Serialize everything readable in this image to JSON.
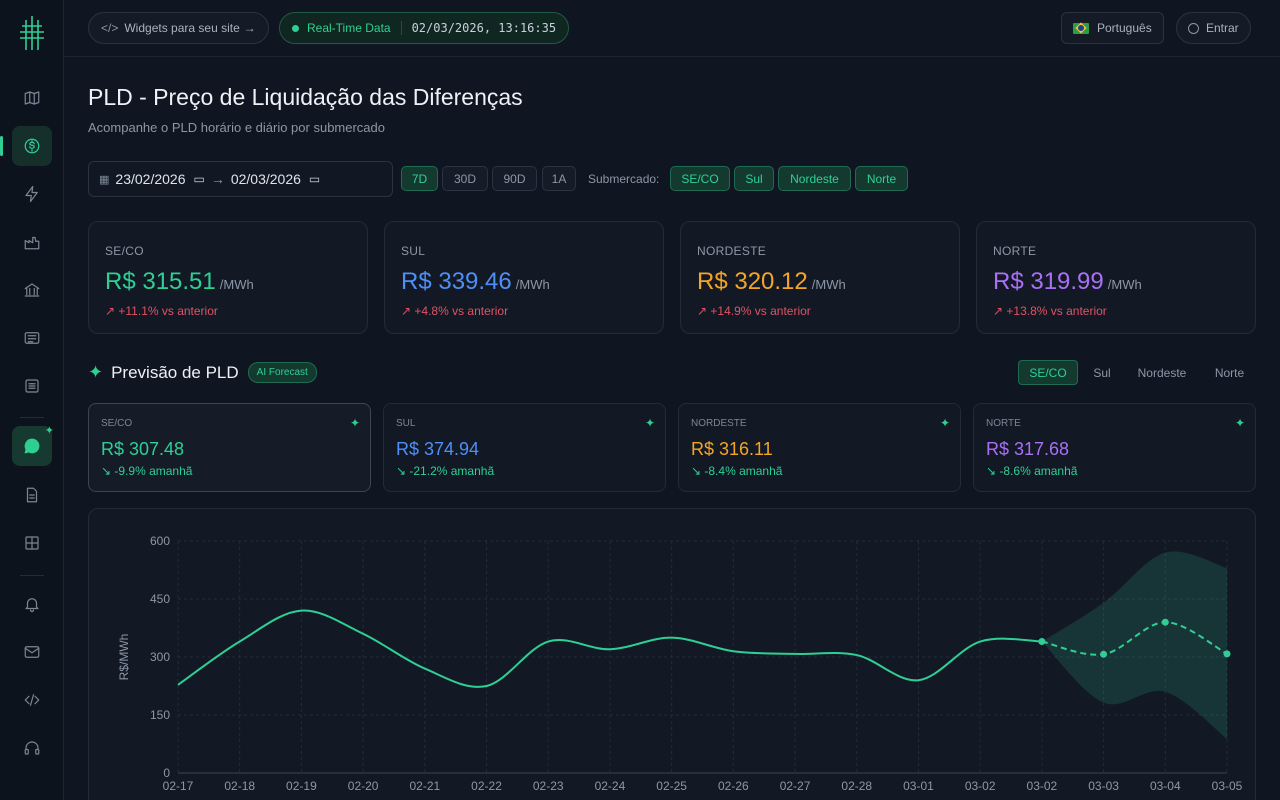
{
  "topbar": {
    "widgets_label": "Widgets para seu site",
    "realtime_label": "Real-Time Data",
    "timestamp": "02/03/2026, 13:16:35",
    "language_label": "Português",
    "login_label": "Entrar"
  },
  "page": {
    "title": "PLD - Preço de Liquidação das Diferenças",
    "subtitle": "Acompanhe o PLD horário e diário por submercado"
  },
  "filters": {
    "date_from": "23/02/2026",
    "date_to": "02/03/2026",
    "ranges": [
      "7D",
      "30D",
      "90D",
      "1A"
    ],
    "active_range": "7D",
    "submarket_label": "Submercado:",
    "submarkets": [
      "SE/CO",
      "Sul",
      "Nordeste",
      "Norte"
    ]
  },
  "price_cards": [
    {
      "label": "SE/CO",
      "value": "R$ 315.51",
      "unit": "/MWh",
      "change": "+11.1% vs anterior",
      "color": "#2fcf94"
    },
    {
      "label": "SUL",
      "value": "R$ 339.46",
      "unit": "/MWh",
      "change": "+4.8% vs anterior",
      "color": "#4f8ef7"
    },
    {
      "label": "NORDESTE",
      "value": "R$ 320.12",
      "unit": "/MWh",
      "change": "+14.9% vs anterior",
      "color": "#f5a524"
    },
    {
      "label": "NORTE",
      "value": "R$ 319.99",
      "unit": "/MWh",
      "change": "+13.8% vs anterior",
      "color": "#a970f5"
    }
  ],
  "forecast": {
    "title": "Previsão de PLD",
    "badge": "AI Forecast",
    "tabs": [
      "SE/CO",
      "Sul",
      "Nordeste",
      "Norte"
    ],
    "active_tab": "SE/CO",
    "cards": [
      {
        "label": "SE/CO",
        "value": "R$ 307.48",
        "change": "-9.9% amanhã",
        "color": "#2fcf94"
      },
      {
        "label": "SUL",
        "value": "R$ 374.94",
        "change": "-21.2% amanhã",
        "color": "#4f8ef7"
      },
      {
        "label": "NORDESTE",
        "value": "R$ 316.11",
        "change": "-8.4% amanhã",
        "color": "#f5a524"
      },
      {
        "label": "NORTE",
        "value": "R$ 317.68",
        "change": "-8.6% amanhã",
        "color": "#a970f5"
      }
    ]
  },
  "chart_data": {
    "type": "line",
    "ylabel": "R$/MWh",
    "ylim": [
      0,
      600
    ],
    "yticks": [
      0,
      150,
      300,
      450,
      600
    ],
    "categories": [
      "02-17",
      "02-18",
      "02-19",
      "02-20",
      "02-21",
      "02-22",
      "02-23",
      "02-24",
      "02-25",
      "02-26",
      "02-27",
      "02-28",
      "03-01",
      "03-02",
      "03-02",
      "03-03",
      "03-04",
      "03-05"
    ],
    "series": [
      {
        "values": [
          228,
          340,
          420,
          360,
          270,
          225,
          340,
          320,
          350,
          315,
          308,
          305,
          240,
          340,
          340,
          null,
          null,
          null
        ]
      },
      {
        "values": [
          null,
          null,
          null,
          null,
          null,
          null,
          null,
          null,
          null,
          null,
          null,
          null,
          null,
          null,
          340,
          307,
          390,
          308
        ]
      }
    ],
    "band_upper": [
      340,
      440,
      570,
      530
    ],
    "band_lower": [
      340,
      182,
      210,
      88
    ],
    "grid": true,
    "accent": "#2fcf94"
  }
}
